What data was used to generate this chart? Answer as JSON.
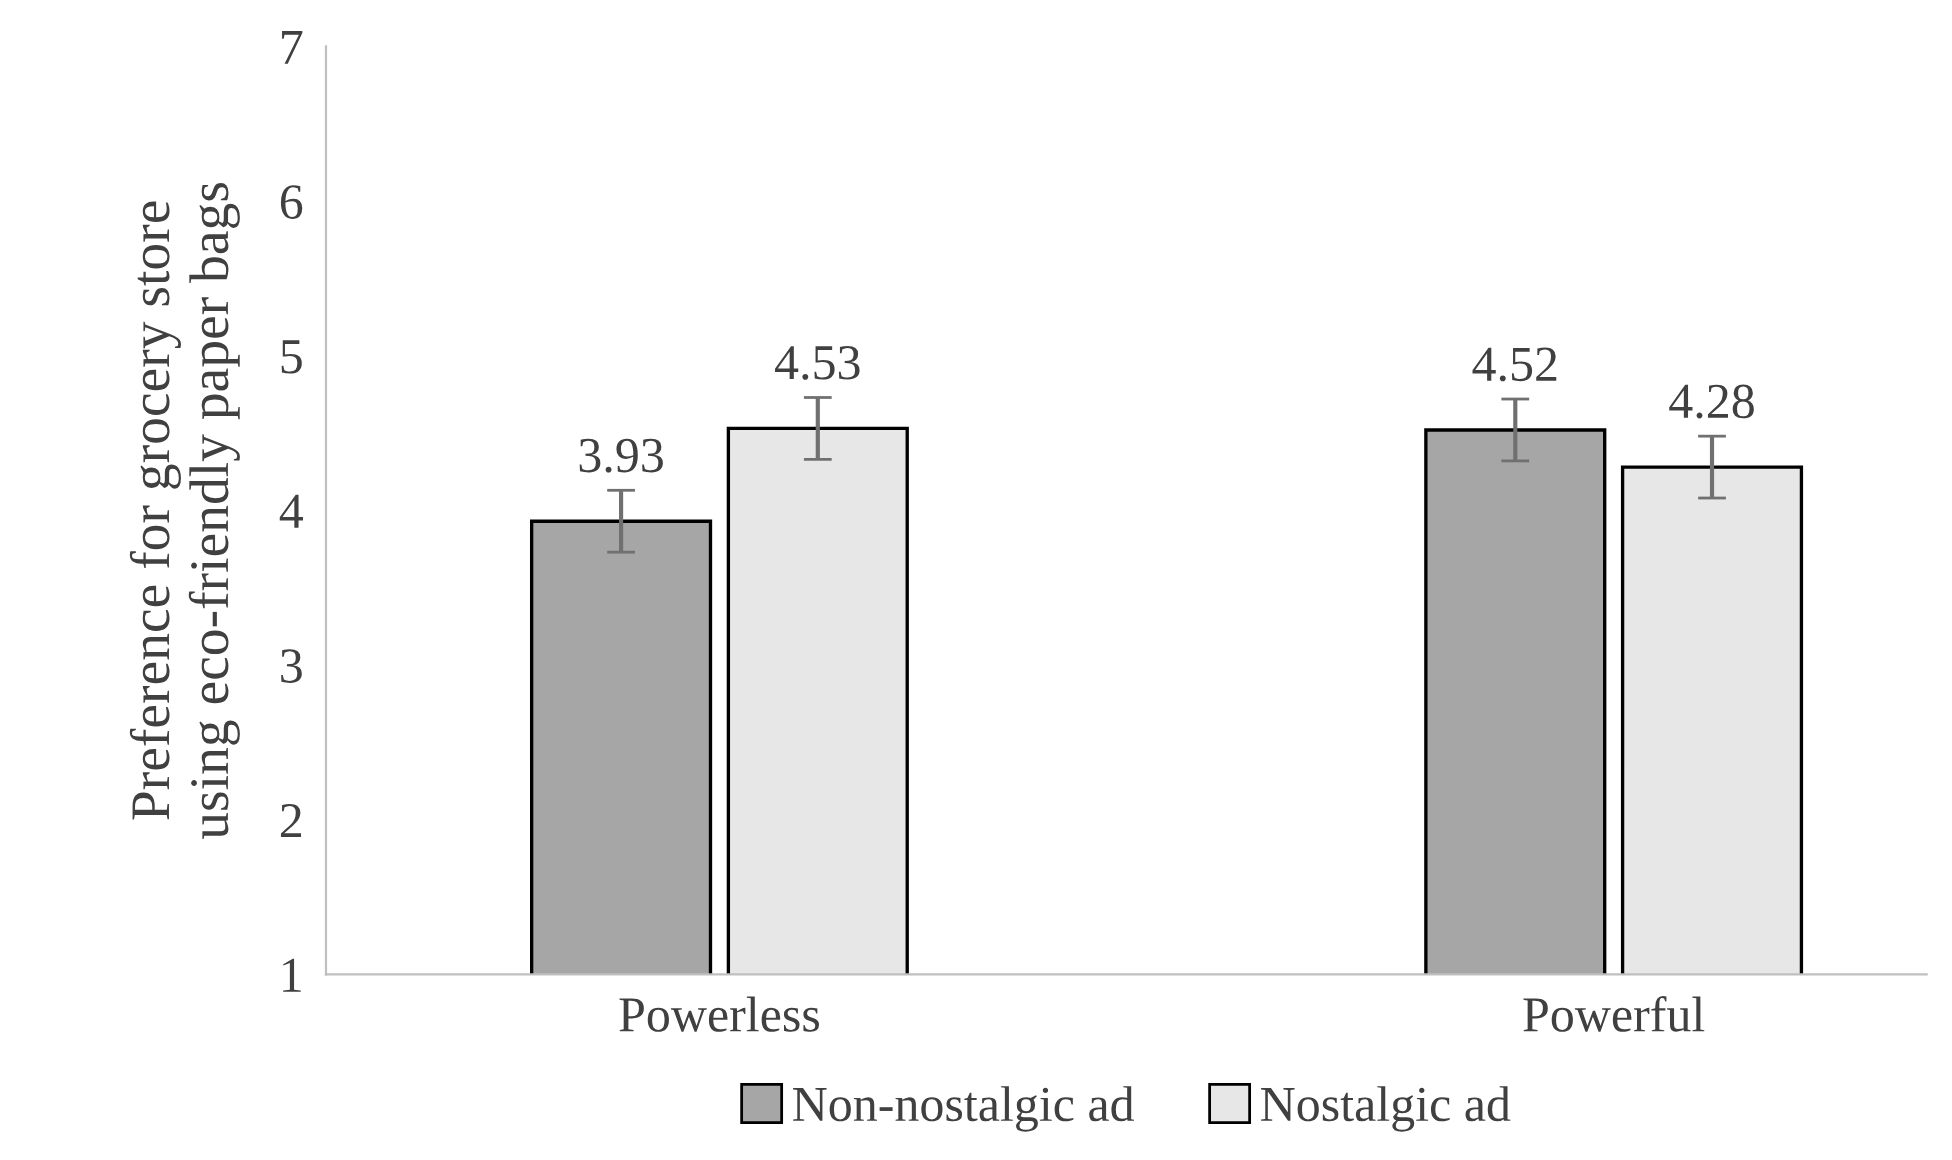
{
  "chart_data": {
    "type": "bar",
    "ylabel": "Preference for grocery store\nusing eco-friendly paper bags",
    "categories": [
      "Powerless",
      "Powerful"
    ],
    "series": [
      {
        "name": "Non-nostalgic ad",
        "color": "#a6a6a6",
        "values": [
          3.93,
          4.52
        ],
        "errors": [
          0.2,
          0.2
        ]
      },
      {
        "name": "Nostalgic ad",
        "color": "#e7e7e7",
        "values": [
          4.53,
          4.28
        ],
        "errors": [
          0.2,
          0.2
        ]
      }
    ],
    "ylim": [
      1,
      7
    ],
    "yticks": [
      1,
      2,
      3,
      4,
      5,
      6,
      7
    ],
    "grid": false,
    "legend": "bottom",
    "data_labels": true
  }
}
